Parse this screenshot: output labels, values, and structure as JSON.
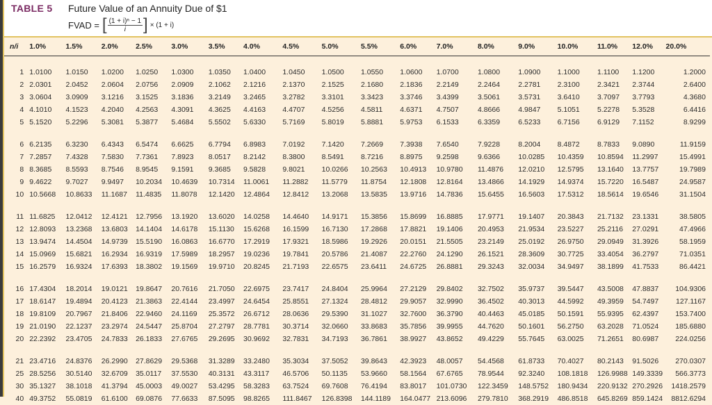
{
  "header": {
    "table_label": "TABLE 5",
    "title": "Future Value of an Annuity Due of $1",
    "formula": {
      "lhs": "FVAD =",
      "numerator": "(1 + i)ⁿ − 1",
      "denominator": "i",
      "tail": "× (1 + i)"
    }
  },
  "table": {
    "corner": "n/i",
    "columns": [
      "1.0%",
      "1.5%",
      "2.0%",
      "2.5%",
      "3.0%",
      "3.5%",
      "4.0%",
      "4.5%",
      "5.0%",
      "5.5%",
      "6.0%",
      "7.0%",
      "8.0%",
      "9.0%",
      "10.0%",
      "11.0%",
      "12.0%",
      "20.0%"
    ],
    "groups": [
      [
        {
          "n": "1",
          "v": [
            "1.0100",
            "1.0150",
            "1.0200",
            "1.0250",
            "1.0300",
            "1.0350",
            "1.0400",
            "1.0450",
            "1.0500",
            "1.0550",
            "1.0600",
            "1.0700",
            "1.0800",
            "1.0900",
            "1.1000",
            "1.1100",
            "1.1200",
            "1.2000"
          ]
        },
        {
          "n": "2",
          "v": [
            "2.0301",
            "2.0452",
            "2.0604",
            "2.0756",
            "2.0909",
            "2.1062",
            "2.1216",
            "2.1370",
            "2.1525",
            "2.1680",
            "2.1836",
            "2.2149",
            "2.2464",
            "2.2781",
            "2.3100",
            "2.3421",
            "2.3744",
            "2.6400"
          ]
        },
        {
          "n": "3",
          "v": [
            "3.0604",
            "3.0909",
            "3.1216",
            "3.1525",
            "3.1836",
            "3.2149",
            "3.2465",
            "3.2782",
            "3.3101",
            "3.3423",
            "3.3746",
            "3.4399",
            "3.5061",
            "3.5731",
            "3.6410",
            "3.7097",
            "3.7793",
            "4.3680"
          ]
        },
        {
          "n": "4",
          "v": [
            "4.1010",
            "4.1523",
            "4.2040",
            "4.2563",
            "4.3091",
            "4.3625",
            "4.4163",
            "4.4707",
            "4.5256",
            "4.5811",
            "4.6371",
            "4.7507",
            "4.8666",
            "4.9847",
            "5.1051",
            "5.2278",
            "5.3528",
            "6.4416"
          ]
        },
        {
          "n": "5",
          "v": [
            "5.1520",
            "5.2296",
            "5.3081",
            "5.3877",
            "5.4684",
            "5.5502",
            "5.6330",
            "5.7169",
            "5.8019",
            "5.8881",
            "5.9753",
            "6.1533",
            "6.3359",
            "6.5233",
            "6.7156",
            "6.9129",
            "7.1152",
            "8.9299"
          ]
        }
      ],
      [
        {
          "n": "6",
          "v": [
            "6.2135",
            "6.3230",
            "6.4343",
            "6.5474",
            "6.6625",
            "6.7794",
            "6.8983",
            "7.0192",
            "7.1420",
            "7.2669",
            "7.3938",
            "7.6540",
            "7.9228",
            "8.2004",
            "8.4872",
            "8.7833",
            "9.0890",
            "11.9159"
          ]
        },
        {
          "n": "7",
          "v": [
            "7.2857",
            "7.4328",
            "7.5830",
            "7.7361",
            "7.8923",
            "8.0517",
            "8.2142",
            "8.3800",
            "8.5491",
            "8.7216",
            "8.8975",
            "9.2598",
            "9.6366",
            "10.0285",
            "10.4359",
            "10.8594",
            "11.2997",
            "15.4991"
          ]
        },
        {
          "n": "8",
          "v": [
            "8.3685",
            "8.5593",
            "8.7546",
            "8.9545",
            "9.1591",
            "9.3685",
            "9.5828",
            "9.8021",
            "10.0266",
            "10.2563",
            "10.4913",
            "10.9780",
            "11.4876",
            "12.0210",
            "12.5795",
            "13.1640",
            "13.7757",
            "19.7989"
          ]
        },
        {
          "n": "9",
          "v": [
            "9.4622",
            "9.7027",
            "9.9497",
            "10.2034",
            "10.4639",
            "10.7314",
            "11.0061",
            "11.2882",
            "11.5779",
            "11.8754",
            "12.1808",
            "12.8164",
            "13.4866",
            "14.1929",
            "14.9374",
            "15.7220",
            "16.5487",
            "24.9587"
          ]
        },
        {
          "n": "10",
          "v": [
            "10.5668",
            "10.8633",
            "11.1687",
            "11.4835",
            "11.8078",
            "12.1420",
            "12.4864",
            "12.8412",
            "13.2068",
            "13.5835",
            "13.9716",
            "14.7836",
            "15.6455",
            "16.5603",
            "17.5312",
            "18.5614",
            "19.6546",
            "31.1504"
          ]
        }
      ],
      [
        {
          "n": "11",
          "v": [
            "11.6825",
            "12.0412",
            "12.4121",
            "12.7956",
            "13.1920",
            "13.6020",
            "14.0258",
            "14.4640",
            "14.9171",
            "15.3856",
            "15.8699",
            "16.8885",
            "17.9771",
            "19.1407",
            "20.3843",
            "21.7132",
            "23.1331",
            "38.5805"
          ]
        },
        {
          "n": "12",
          "v": [
            "12.8093",
            "13.2368",
            "13.6803",
            "14.1404",
            "14.6178",
            "15.1130",
            "15.6268",
            "16.1599",
            "16.7130",
            "17.2868",
            "17.8821",
            "19.1406",
            "20.4953",
            "21.9534",
            "23.5227",
            "25.2116",
            "27.0291",
            "47.4966"
          ]
        },
        {
          "n": "13",
          "v": [
            "13.9474",
            "14.4504",
            "14.9739",
            "15.5190",
            "16.0863",
            "16.6770",
            "17.2919",
            "17.9321",
            "18.5986",
            "19.2926",
            "20.0151",
            "21.5505",
            "23.2149",
            "25.0192",
            "26.9750",
            "29.0949",
            "31.3926",
            "58.1959"
          ]
        },
        {
          "n": "14",
          "v": [
            "15.0969",
            "15.6821",
            "16.2934",
            "16.9319",
            "17.5989",
            "18.2957",
            "19.0236",
            "19.7841",
            "20.5786",
            "21.4087",
            "22.2760",
            "24.1290",
            "26.1521",
            "28.3609",
            "30.7725",
            "33.4054",
            "36.2797",
            "71.0351"
          ]
        },
        {
          "n": "15",
          "v": [
            "16.2579",
            "16.9324",
            "17.6393",
            "18.3802",
            "19.1569",
            "19.9710",
            "20.8245",
            "21.7193",
            "22.6575",
            "23.6411",
            "24.6725",
            "26.8881",
            "29.3243",
            "32.0034",
            "34.9497",
            "38.1899",
            "41.7533",
            "86.4421"
          ]
        }
      ],
      [
        {
          "n": "16",
          "v": [
            "17.4304",
            "18.2014",
            "19.0121",
            "19.8647",
            "20.7616",
            "21.7050",
            "22.6975",
            "23.7417",
            "24.8404",
            "25.9964",
            "27.2129",
            "29.8402",
            "32.7502",
            "35.9737",
            "39.5447",
            "43.5008",
            "47.8837",
            "104.9306"
          ]
        },
        {
          "n": "17",
          "v": [
            "18.6147",
            "19.4894",
            "20.4123",
            "21.3863",
            "22.4144",
            "23.4997",
            "24.6454",
            "25.8551",
            "27.1324",
            "28.4812",
            "29.9057",
            "32.9990",
            "36.4502",
            "40.3013",
            "44.5992",
            "49.3959",
            "54.7497",
            "127.1167"
          ]
        },
        {
          "n": "18",
          "v": [
            "19.8109",
            "20.7967",
            "21.8406",
            "22.9460",
            "24.1169",
            "25.3572",
            "26.6712",
            "28.0636",
            "29.5390",
            "31.1027",
            "32.7600",
            "36.3790",
            "40.4463",
            "45.0185",
            "50.1591",
            "55.9395",
            "62.4397",
            "153.7400"
          ]
        },
        {
          "n": "19",
          "v": [
            "21.0190",
            "22.1237",
            "23.2974",
            "24.5447",
            "25.8704",
            "27.2797",
            "28.7781",
            "30.3714",
            "32.0660",
            "33.8683",
            "35.7856",
            "39.9955",
            "44.7620",
            "50.1601",
            "56.2750",
            "63.2028",
            "71.0524",
            "185.6880"
          ]
        },
        {
          "n": "20",
          "v": [
            "22.2392",
            "23.4705",
            "24.7833",
            "26.1833",
            "27.6765",
            "29.2695",
            "30.9692",
            "32.7831",
            "34.7193",
            "36.7861",
            "38.9927",
            "43.8652",
            "49.4229",
            "55.7645",
            "63.0025",
            "71.2651",
            "80.6987",
            "224.0256"
          ]
        }
      ],
      [
        {
          "n": "21",
          "v": [
            "23.4716",
            "24.8376",
            "26.2990",
            "27.8629",
            "29.5368",
            "31.3289",
            "33.2480",
            "35.3034",
            "37.5052",
            "39.8643",
            "42.3923",
            "48.0057",
            "54.4568",
            "61.8733",
            "70.4027",
            "80.2143",
            "91.5026",
            "270.0307"
          ]
        },
        {
          "n": "25",
          "v": [
            "28.5256",
            "30.5140",
            "32.6709",
            "35.0117",
            "37.5530",
            "40.3131",
            "43.3117",
            "46.5706",
            "50.1135",
            "53.9660",
            "58.1564",
            "67.6765",
            "78.9544",
            "92.3240",
            "108.1818",
            "126.9988",
            "149.3339",
            "566.3773"
          ]
        },
        {
          "n": "30",
          "v": [
            "35.1327",
            "38.1018",
            "41.3794",
            "45.0003",
            "49.0027",
            "53.4295",
            "58.3283",
            "63.7524",
            "69.7608",
            "76.4194",
            "83.8017",
            "101.0730",
            "122.3459",
            "148.5752",
            "180.9434",
            "220.9132",
            "270.2926",
            "1418.2579"
          ]
        },
        {
          "n": "40",
          "v": [
            "49.3752",
            "55.0819",
            "61.6100",
            "69.0876",
            "77.6633",
            "87.5095",
            "98.8265",
            "111.8467",
            "126.8398",
            "144.1189",
            "164.0477",
            "213.6096",
            "279.7810",
            "368.2919",
            "486.8518",
            "645.8269",
            "859.1424",
            "8812.6294"
          ]
        }
      ]
    ]
  },
  "colors": {
    "title_accent": "#7a2a62",
    "rule_gold": "#e2c260",
    "body_bg": "#fdf0dc"
  }
}
